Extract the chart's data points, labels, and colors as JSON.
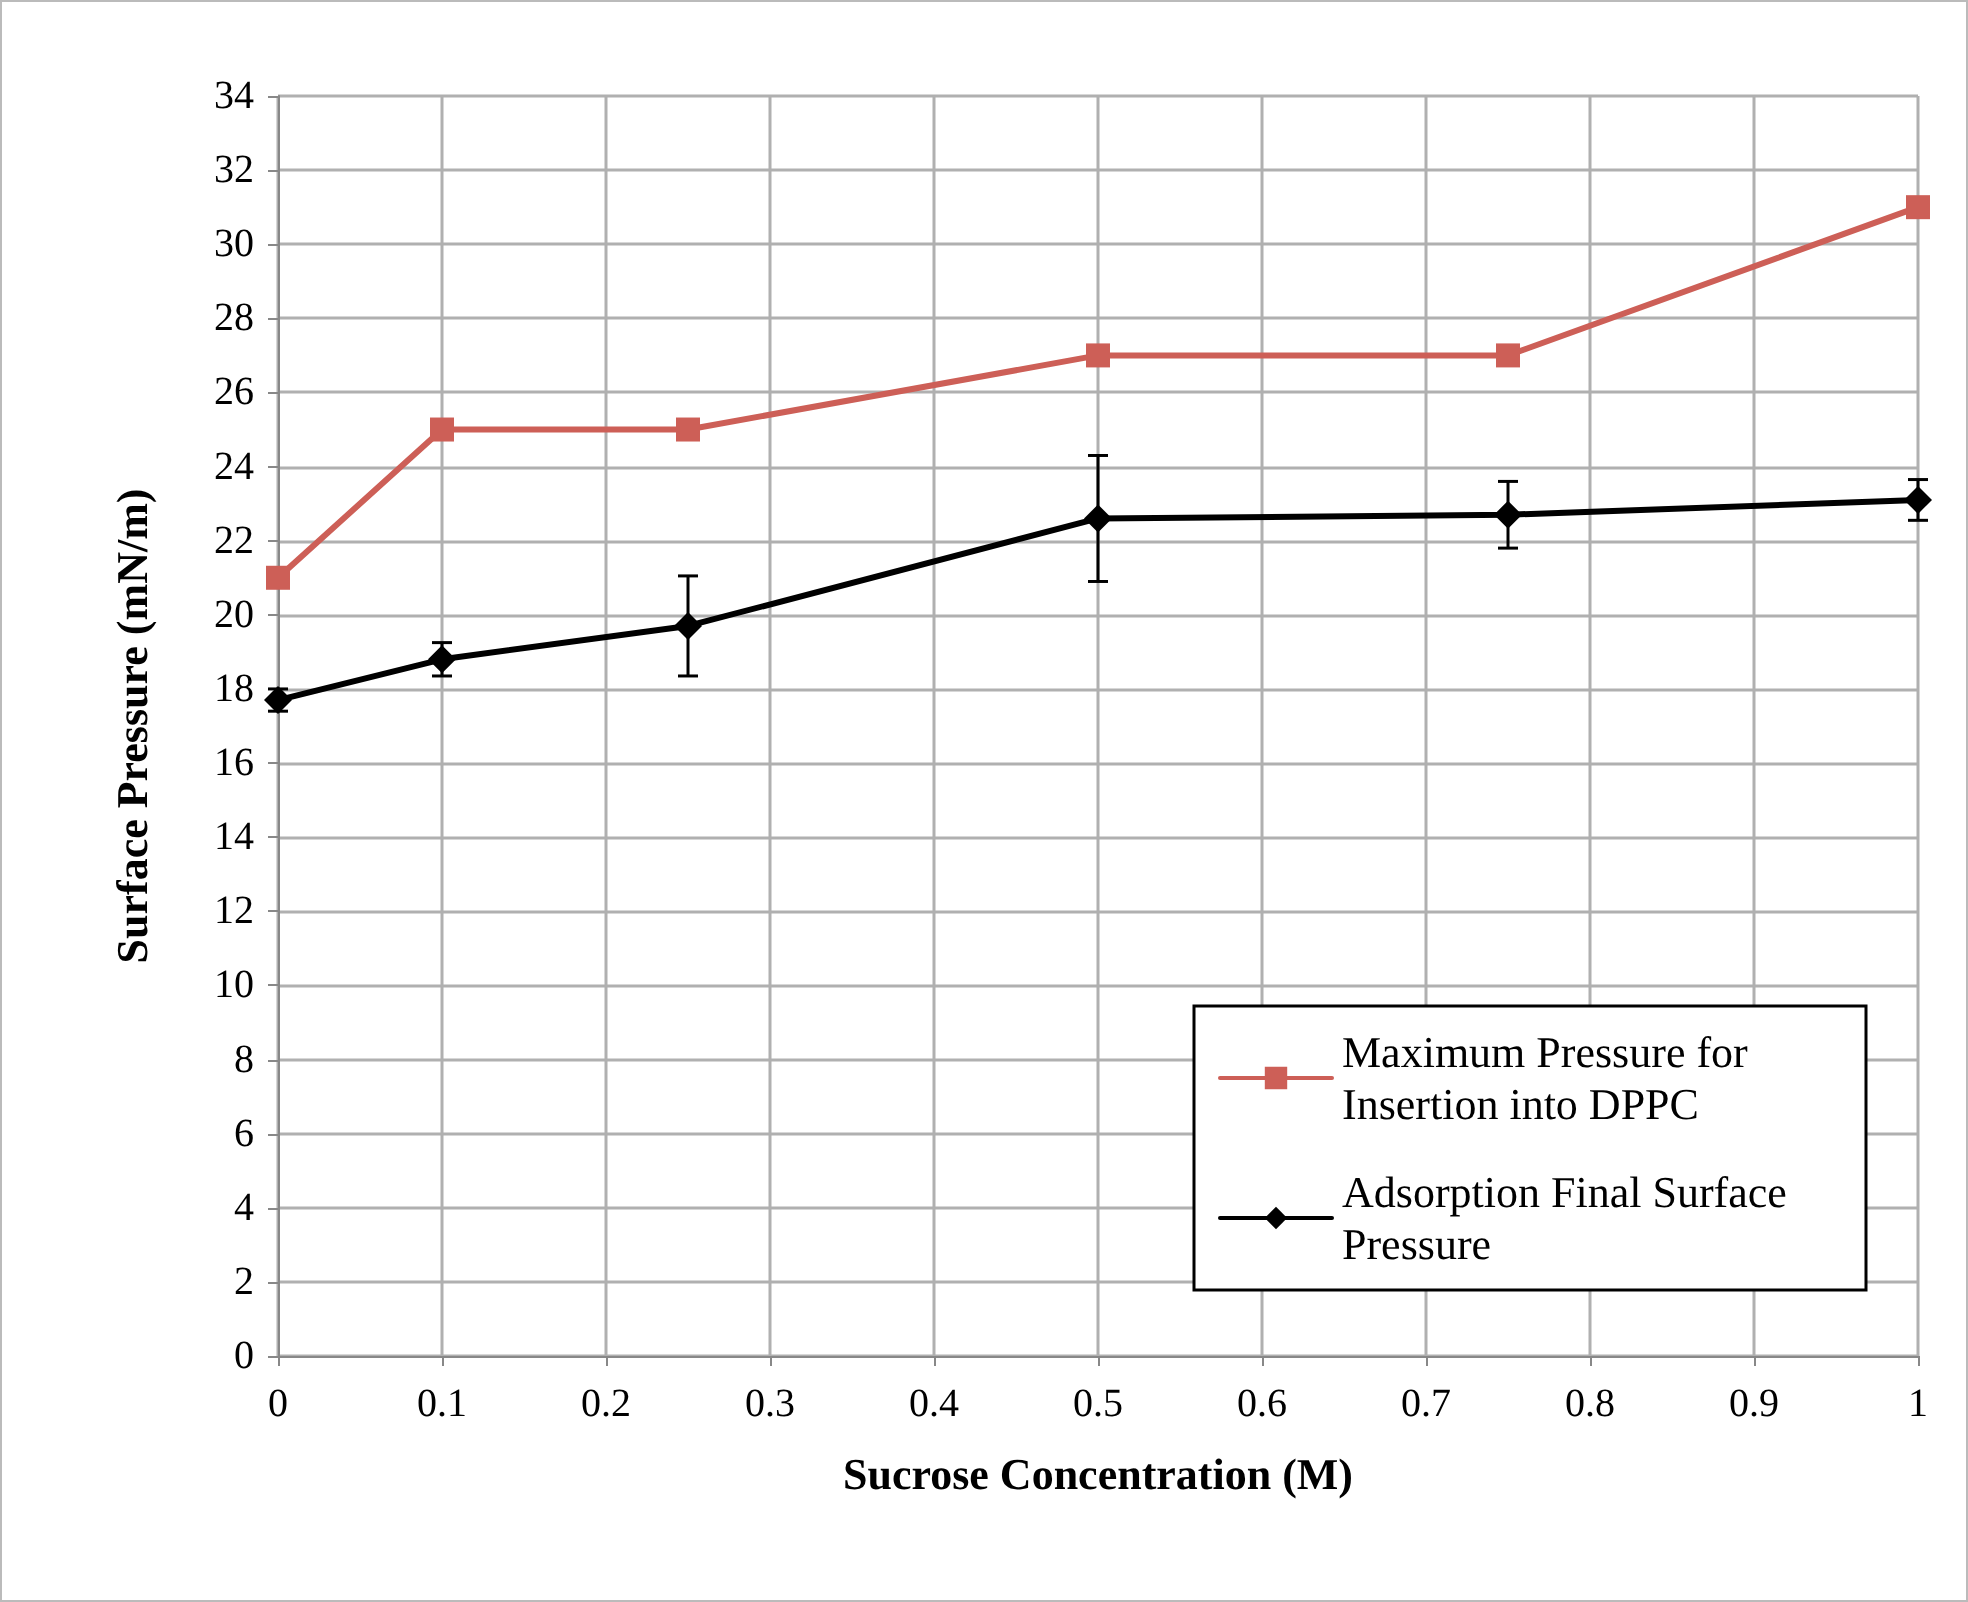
{
  "chart_data": {
    "type": "line",
    "xlabel": "Sucrose Concentration (M)",
    "ylabel": "Surface Pressure (mN/m)",
    "x": [
      0,
      0.1,
      0.25,
      0.5,
      0.75,
      1
    ],
    "series": [
      {
        "name": "Maximum Pressure for Insertion into DPPC",
        "color": "#cd5f57",
        "marker": "square",
        "values": [
          21,
          25,
          25,
          27,
          27,
          31
        ]
      },
      {
        "name": "Adsorption Final Surface Pressure",
        "color": "#000000",
        "marker": "diamond",
        "values": [
          17.7,
          18.8,
          19.7,
          22.6,
          22.7,
          23.1
        ],
        "errors": [
          0.3,
          0.45,
          1.35,
          1.7,
          0.9,
          0.55
        ]
      }
    ],
    "xlim": [
      0,
      1
    ],
    "xticks": [
      0,
      0.1,
      0.2,
      0.3,
      0.4,
      0.5,
      0.6,
      0.7,
      0.8,
      0.9,
      1
    ],
    "ylim": [
      0,
      34
    ],
    "yticks": [
      0,
      2,
      4,
      6,
      8,
      10,
      12,
      14,
      16,
      18,
      20,
      22,
      24,
      26,
      28,
      30,
      32,
      34
    ],
    "grid": true,
    "legend": "bottom right",
    "line_style": "solid"
  }
}
